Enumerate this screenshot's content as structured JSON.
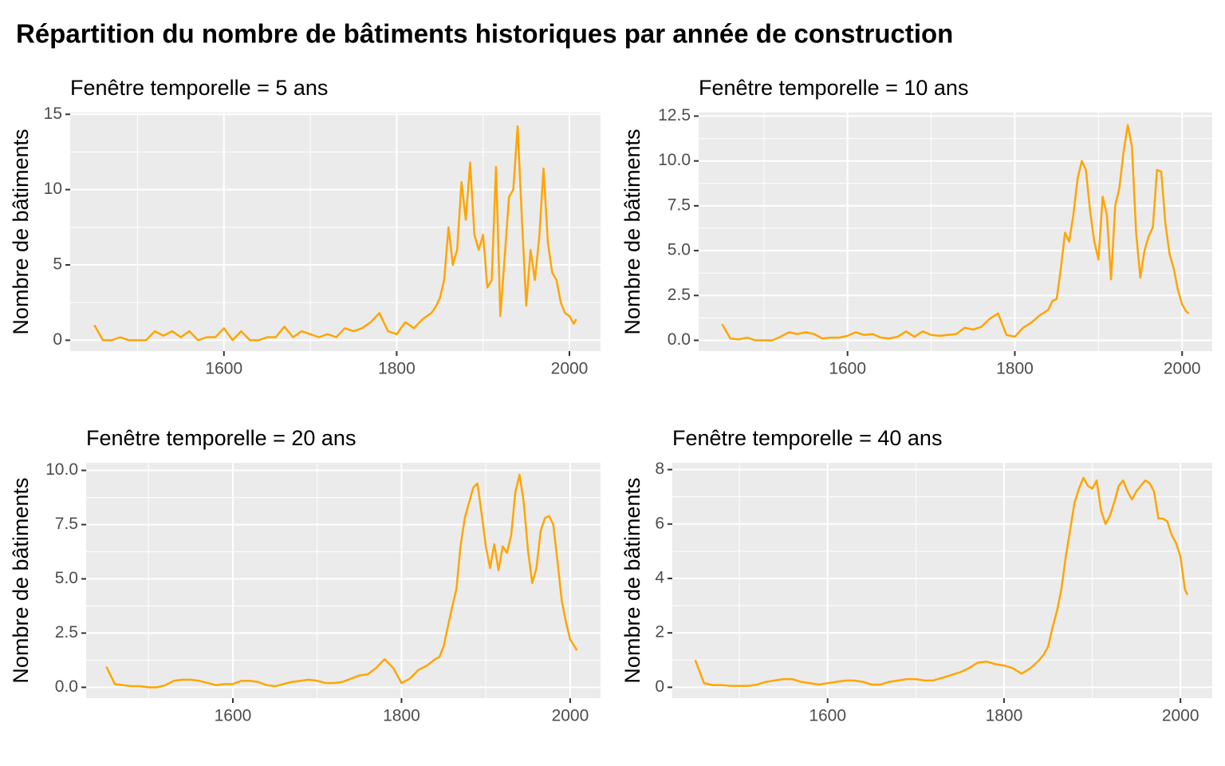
{
  "title": "Répartition du nombre de bâtiments historiques par année de construction",
  "chart_data": [
    {
      "type": "line",
      "title": "Fenêtre temporelle = 5 ans",
      "y_label": "Nombre de bâtiments",
      "color": "#FFA500",
      "grid": true,
      "x": [
        1450,
        1460,
        1470,
        1480,
        1490,
        1500,
        1510,
        1520,
        1530,
        1540,
        1550,
        1560,
        1570,
        1580,
        1590,
        1600,
        1610,
        1620,
        1630,
        1640,
        1650,
        1660,
        1670,
        1680,
        1690,
        1700,
        1710,
        1720,
        1730,
        1740,
        1750,
        1760,
        1770,
        1780,
        1790,
        1800,
        1810,
        1820,
        1830,
        1840,
        1845,
        1850,
        1855,
        1860,
        1865,
        1870,
        1875,
        1880,
        1885,
        1890,
        1895,
        1900,
        1905,
        1910,
        1915,
        1920,
        1925,
        1930,
        1935,
        1940,
        1945,
        1950,
        1955,
        1960,
        1965,
        1970,
        1975,
        1980,
        1985,
        1990,
        1995,
        2000,
        2005,
        2008
      ],
      "values": [
        1.0,
        0,
        0,
        0.2,
        0,
        0,
        0,
        0.6,
        0.3,
        0.6,
        0.2,
        0.6,
        0,
        0.2,
        0.2,
        0.8,
        0,
        0.6,
        0,
        0,
        0.2,
        0.2,
        0.9,
        0.2,
        0.6,
        0.4,
        0.2,
        0.4,
        0.2,
        0.8,
        0.6,
        0.8,
        1.2,
        1.8,
        0.6,
        0.4,
        1.2,
        0.8,
        1.4,
        1.8,
        2.2,
        2.8,
        4.0,
        7.5,
        5.0,
        6.0,
        10.5,
        8.0,
        11.8,
        7.0,
        6.0,
        7.0,
        3.5,
        4.0,
        11.5,
        1.6,
        5.5,
        9.5,
        10.0,
        14.2,
        8.0,
        2.3,
        6.0,
        4.0,
        6.8,
        11.4,
        6.5,
        4.5,
        4.0,
        2.5,
        1.8,
        1.6,
        1.1,
        1.4
      ],
      "xlim": [
        1422,
        2036
      ],
      "xticks": [
        1600,
        1800,
        2000
      ],
      "ylim": [
        -0.72,
        15.12
      ],
      "yticks": [
        0,
        5,
        10,
        15
      ]
    },
    {
      "type": "line",
      "title": "Fenêtre temporelle = 10 ans",
      "y_label": "Nombre de bâtiments",
      "color": "#FFA500",
      "grid": true,
      "x": [
        1450,
        1460,
        1470,
        1480,
        1490,
        1500,
        1510,
        1520,
        1530,
        1540,
        1550,
        1560,
        1570,
        1580,
        1590,
        1600,
        1610,
        1620,
        1630,
        1640,
        1650,
        1660,
        1670,
        1680,
        1690,
        1700,
        1710,
        1720,
        1730,
        1740,
        1750,
        1760,
        1770,
        1780,
        1790,
        1800,
        1810,
        1820,
        1830,
        1840,
        1845,
        1850,
        1855,
        1860,
        1865,
        1870,
        1875,
        1880,
        1885,
        1890,
        1895,
        1900,
        1905,
        1910,
        1915,
        1920,
        1925,
        1930,
        1935,
        1940,
        1945,
        1950,
        1955,
        1960,
        1965,
        1970,
        1975,
        1980,
        1985,
        1990,
        1995,
        2000,
        2005,
        2008
      ],
      "values": [
        0.9,
        0.1,
        0.05,
        0.15,
        0,
        0,
        0,
        0.2,
        0.45,
        0.35,
        0.45,
        0.35,
        0.1,
        0.15,
        0.15,
        0.25,
        0.45,
        0.3,
        0.35,
        0.15,
        0.1,
        0.2,
        0.5,
        0.2,
        0.5,
        0.3,
        0.25,
        0.3,
        0.35,
        0.7,
        0.6,
        0.75,
        1.2,
        1.5,
        0.3,
        0.2,
        0.7,
        1.0,
        1.4,
        1.7,
        2.2,
        2.3,
        4.0,
        6.0,
        5.5,
        7.0,
        9.0,
        10.0,
        9.5,
        7.2,
        5.5,
        4.5,
        8.0,
        7.0,
        3.4,
        7.5,
        8.5,
        10.5,
        12.0,
        10.8,
        6.0,
        3.5,
        5.0,
        5.8,
        6.3,
        9.5,
        9.4,
        6.5,
        4.8,
        4.0,
        2.8,
        2.0,
        1.6,
        1.5
      ],
      "xlim": [
        1422,
        2036
      ],
      "xticks": [
        1600,
        1800,
        2000
      ],
      "ylim": [
        -0.6,
        12.7
      ],
      "yticks": [
        {
          "value": 0,
          "label": "0.0"
        },
        {
          "value": 2.5,
          "label": "2.5"
        },
        {
          "value": 5,
          "label": "5.0"
        },
        {
          "value": 7.5,
          "label": "7.5"
        },
        {
          "value": 10,
          "label": "10.0"
        },
        {
          "value": 12.5,
          "label": "12.5"
        }
      ]
    },
    {
      "type": "line",
      "title": "Fenêtre temporelle = 20 ans",
      "y_label": "Nombre de bâtiments",
      "color": "#FFA500",
      "grid": true,
      "x": [
        1450,
        1460,
        1470,
        1480,
        1490,
        1500,
        1510,
        1520,
        1530,
        1540,
        1550,
        1560,
        1570,
        1580,
        1590,
        1600,
        1610,
        1620,
        1630,
        1640,
        1650,
        1660,
        1670,
        1680,
        1690,
        1700,
        1710,
        1720,
        1730,
        1740,
        1750,
        1760,
        1770,
        1780,
        1790,
        1800,
        1810,
        1820,
        1830,
        1840,
        1845,
        1850,
        1855,
        1860,
        1865,
        1870,
        1875,
        1880,
        1885,
        1890,
        1895,
        1900,
        1905,
        1910,
        1915,
        1920,
        1925,
        1930,
        1935,
        1940,
        1945,
        1950,
        1955,
        1960,
        1965,
        1970,
        1975,
        1980,
        1985,
        1990,
        1995,
        2000,
        2005,
        2008
      ],
      "values": [
        0.95,
        0.15,
        0.1,
        0.05,
        0.05,
        0,
        0,
        0.1,
        0.3,
        0.35,
        0.35,
        0.3,
        0.2,
        0.1,
        0.15,
        0.15,
        0.3,
        0.3,
        0.25,
        0.1,
        0.05,
        0.15,
        0.25,
        0.3,
        0.35,
        0.3,
        0.2,
        0.2,
        0.25,
        0.4,
        0.55,
        0.6,
        0.9,
        1.3,
        0.9,
        0.2,
        0.4,
        0.8,
        1.0,
        1.3,
        1.4,
        1.9,
        2.8,
        3.7,
        4.5,
        6.5,
        7.8,
        8.5,
        9.2,
        9.4,
        8.0,
        6.5,
        5.5,
        6.6,
        5.4,
        6.5,
        6.2,
        7.0,
        9.0,
        9.8,
        8.5,
        6.3,
        4.8,
        5.5,
        7.2,
        7.8,
        7.9,
        7.5,
        5.8,
        4.0,
        3.0,
        2.2,
        1.9,
        1.7
      ],
      "xlim": [
        1426,
        2036
      ],
      "xticks": [
        1600,
        1800,
        2000
      ],
      "ylim": [
        -0.5,
        10.35
      ],
      "yticks": [
        {
          "value": 0,
          "label": "0.0"
        },
        {
          "value": 2.5,
          "label": "2.5"
        },
        {
          "value": 5,
          "label": "5.0"
        },
        {
          "value": 7.5,
          "label": "7.5"
        },
        {
          "value": 10,
          "label": "10.0"
        }
      ]
    },
    {
      "type": "line",
      "title": "Fenêtre temporelle = 40 ans",
      "y_label": "Nombre de bâtiments",
      "color": "#FFA500",
      "grid": true,
      "x": [
        1450,
        1460,
        1470,
        1480,
        1490,
        1500,
        1510,
        1520,
        1530,
        1540,
        1550,
        1560,
        1570,
        1580,
        1590,
        1600,
        1610,
        1620,
        1630,
        1640,
        1650,
        1660,
        1670,
        1680,
        1690,
        1700,
        1710,
        1720,
        1730,
        1740,
        1750,
        1760,
        1770,
        1780,
        1790,
        1800,
        1810,
        1820,
        1830,
        1840,
        1845,
        1850,
        1855,
        1860,
        1865,
        1870,
        1875,
        1880,
        1885,
        1890,
        1895,
        1900,
        1905,
        1910,
        1915,
        1920,
        1925,
        1930,
        1935,
        1940,
        1945,
        1950,
        1955,
        1960,
        1965,
        1970,
        1975,
        1980,
        1985,
        1990,
        1995,
        2000,
        2005,
        2008
      ],
      "values": [
        1.0,
        0.15,
        0.08,
        0.08,
        0.05,
        0.05,
        0.05,
        0.1,
        0.2,
        0.25,
        0.3,
        0.3,
        0.2,
        0.15,
        0.1,
        0.15,
        0.2,
        0.25,
        0.25,
        0.2,
        0.1,
        0.1,
        0.2,
        0.25,
        0.3,
        0.3,
        0.25,
        0.25,
        0.35,
        0.45,
        0.55,
        0.7,
        0.9,
        0.95,
        0.85,
        0.8,
        0.7,
        0.5,
        0.7,
        1.0,
        1.2,
        1.5,
        2.2,
        2.8,
        3.6,
        4.8,
        5.8,
        6.8,
        7.3,
        7.7,
        7.4,
        7.3,
        7.6,
        6.5,
        6.0,
        6.3,
        6.8,
        7.4,
        7.6,
        7.2,
        6.9,
        7.2,
        7.4,
        7.6,
        7.5,
        7.2,
        6.2,
        6.2,
        6.1,
        5.6,
        5.3,
        4.8,
        3.6,
        3.4
      ],
      "xlim": [
        1424,
        2036
      ],
      "xticks": [
        1600,
        1800,
        2000
      ],
      "ylim": [
        -0.4,
        8.25
      ],
      "yticks": [
        0,
        2,
        4,
        6,
        8
      ]
    }
  ]
}
